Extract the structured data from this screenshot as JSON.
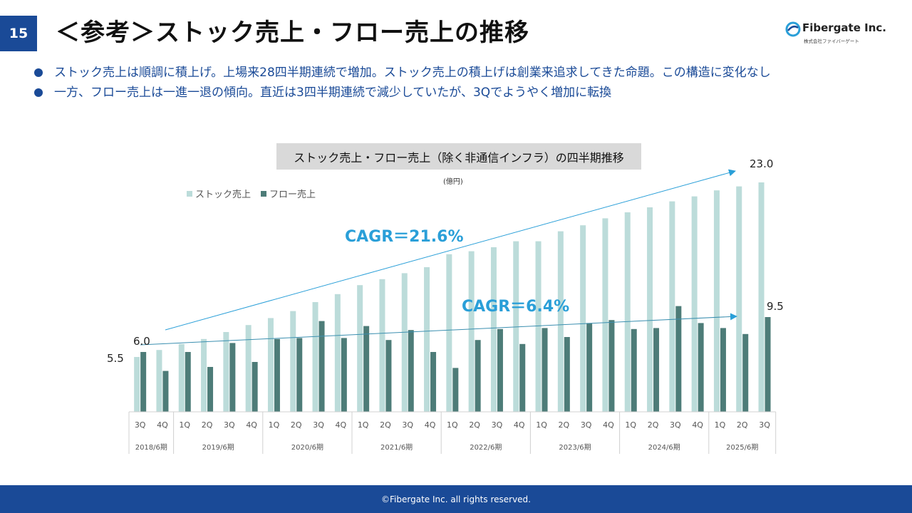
{
  "page": {
    "number": "15",
    "title": "＜参考＞ストック売上・フロー売上の推移",
    "logo_name": "Fibergate Inc.",
    "logo_sub": "株式会社ファイバーゲート",
    "bullets": [
      "ストック売上は順調に積上げ。上場来28四半期連続で増加。ストック売上の積上げは創業来追求してきた命題。この構造に変化なし",
      "一方、フロー売上は一進一退の傾向。直近は3四半期連続で減少していたが、3Qでようやく増加に転換"
    ],
    "footer": "©Fibergate Inc. all rights reserved.",
    "colors": {
      "brand": "#1a4a97",
      "stock": "#bcdcda",
      "flow": "#4d7c78",
      "cagr": "#2a9fd8"
    }
  },
  "chart_data": {
    "type": "bar",
    "title": "ストック売上・フロー売上（除く非通信インフラ）の四半期推移",
    "unit": "(億円)",
    "legend": [
      "ストック売上",
      "フロー売上"
    ],
    "legend_position": "top-left",
    "categories": [
      "3Q",
      "4Q",
      "1Q",
      "2Q",
      "3Q",
      "4Q",
      "1Q",
      "2Q",
      "3Q",
      "4Q",
      "1Q",
      "2Q",
      "3Q",
      "4Q",
      "1Q",
      "2Q",
      "3Q",
      "4Q",
      "1Q",
      "2Q",
      "3Q",
      "4Q",
      "1Q",
      "2Q",
      "3Q",
      "4Q",
      "1Q",
      "2Q",
      "3Q"
    ],
    "fiscal_years": [
      {
        "label": "2018/6期",
        "count": 2
      },
      {
        "label": "2019/6期",
        "count": 4
      },
      {
        "label": "2020/6期",
        "count": 4
      },
      {
        "label": "2021/6期",
        "count": 4
      },
      {
        "label": "2022/6期",
        "count": 4
      },
      {
        "label": "2023/6期",
        "count": 4
      },
      {
        "label": "2024/6期",
        "count": 4
      },
      {
        "label": "2025/6期",
        "count": 3
      }
    ],
    "ylim": [
      0,
      24
    ],
    "grid": false,
    "series": [
      {
        "name": "ストック売上",
        "values": [
          5.5,
          6.2,
          6.8,
          7.3,
          8.0,
          8.7,
          9.4,
          10.1,
          11.0,
          11.8,
          12.7,
          13.3,
          13.9,
          14.5,
          15.8,
          16.1,
          16.5,
          17.1,
          17.1,
          18.1,
          18.7,
          19.4,
          20.0,
          20.5,
          21.1,
          21.6,
          22.2,
          22.6,
          23.0
        ]
      },
      {
        "name": "フロー売上",
        "values": [
          6.0,
          4.1,
          6.0,
          4.5,
          6.9,
          5.0,
          7.3,
          7.4,
          9.1,
          7.4,
          8.6,
          7.2,
          8.2,
          6.0,
          4.4,
          7.2,
          8.3,
          6.8,
          8.4,
          7.5,
          8.9,
          9.2,
          8.3,
          8.4,
          10.6,
          8.9,
          8.4,
          7.8,
          9.5
        ]
      }
    ],
    "data_labels": [
      {
        "series": 0,
        "index": 0,
        "text": "5.5"
      },
      {
        "series": 1,
        "index": 0,
        "text": "6.0"
      },
      {
        "series": 0,
        "index": 28,
        "text": "23.0"
      },
      {
        "series": 1,
        "index": 28,
        "text": "9.5"
      }
    ],
    "annotations": [
      {
        "text": "CAGR＝21.6%",
        "series": 0
      },
      {
        "text": "CAGR＝6.4%",
        "series": 1
      }
    ]
  }
}
